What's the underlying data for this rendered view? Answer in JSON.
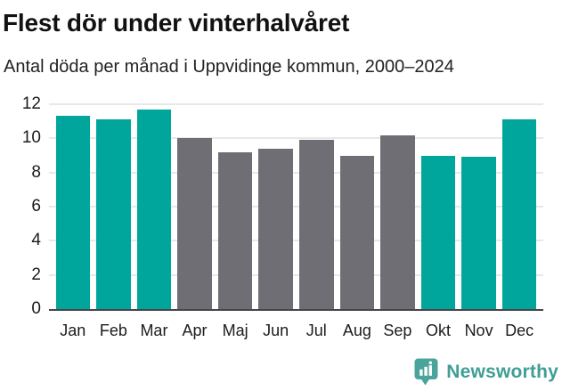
{
  "chart_data": {
    "type": "bar",
    "title": "Flest dör under vinterhalvåret",
    "subtitle": "Antal döda per månad i Uppvidinge kommun, 2000–2024",
    "categories": [
      "Jan",
      "Feb",
      "Mar",
      "Apr",
      "Maj",
      "Jun",
      "Jul",
      "Aug",
      "Sep",
      "Okt",
      "Nov",
      "Dec"
    ],
    "values": [
      11.3,
      11.1,
      11.7,
      10.0,
      9.2,
      9.4,
      9.9,
      9.0,
      10.2,
      9.0,
      8.9,
      11.1
    ],
    "bar_colors": [
      "winter",
      "winter",
      "winter",
      "summer",
      "summer",
      "summer",
      "summer",
      "summer",
      "summer",
      "winter",
      "winter",
      "winter"
    ],
    "palette": {
      "winter": "#00a59b",
      "summer": "#6e6e74"
    },
    "xlabel": "",
    "ylabel": "",
    "ylim": [
      0,
      12
    ],
    "yticks": [
      0,
      2,
      4,
      6,
      8,
      10,
      12
    ],
    "grid": "horizontal",
    "gridline_color": "#e8e8e8",
    "axis_color": "#45454a",
    "legend": "none"
  },
  "footer": {
    "brand": "Newsworthy",
    "brand_color": "#3f9e95",
    "logo_icon": "speech-bubble-with-bar-chart",
    "logo_icon_color": "#4aa49b"
  }
}
